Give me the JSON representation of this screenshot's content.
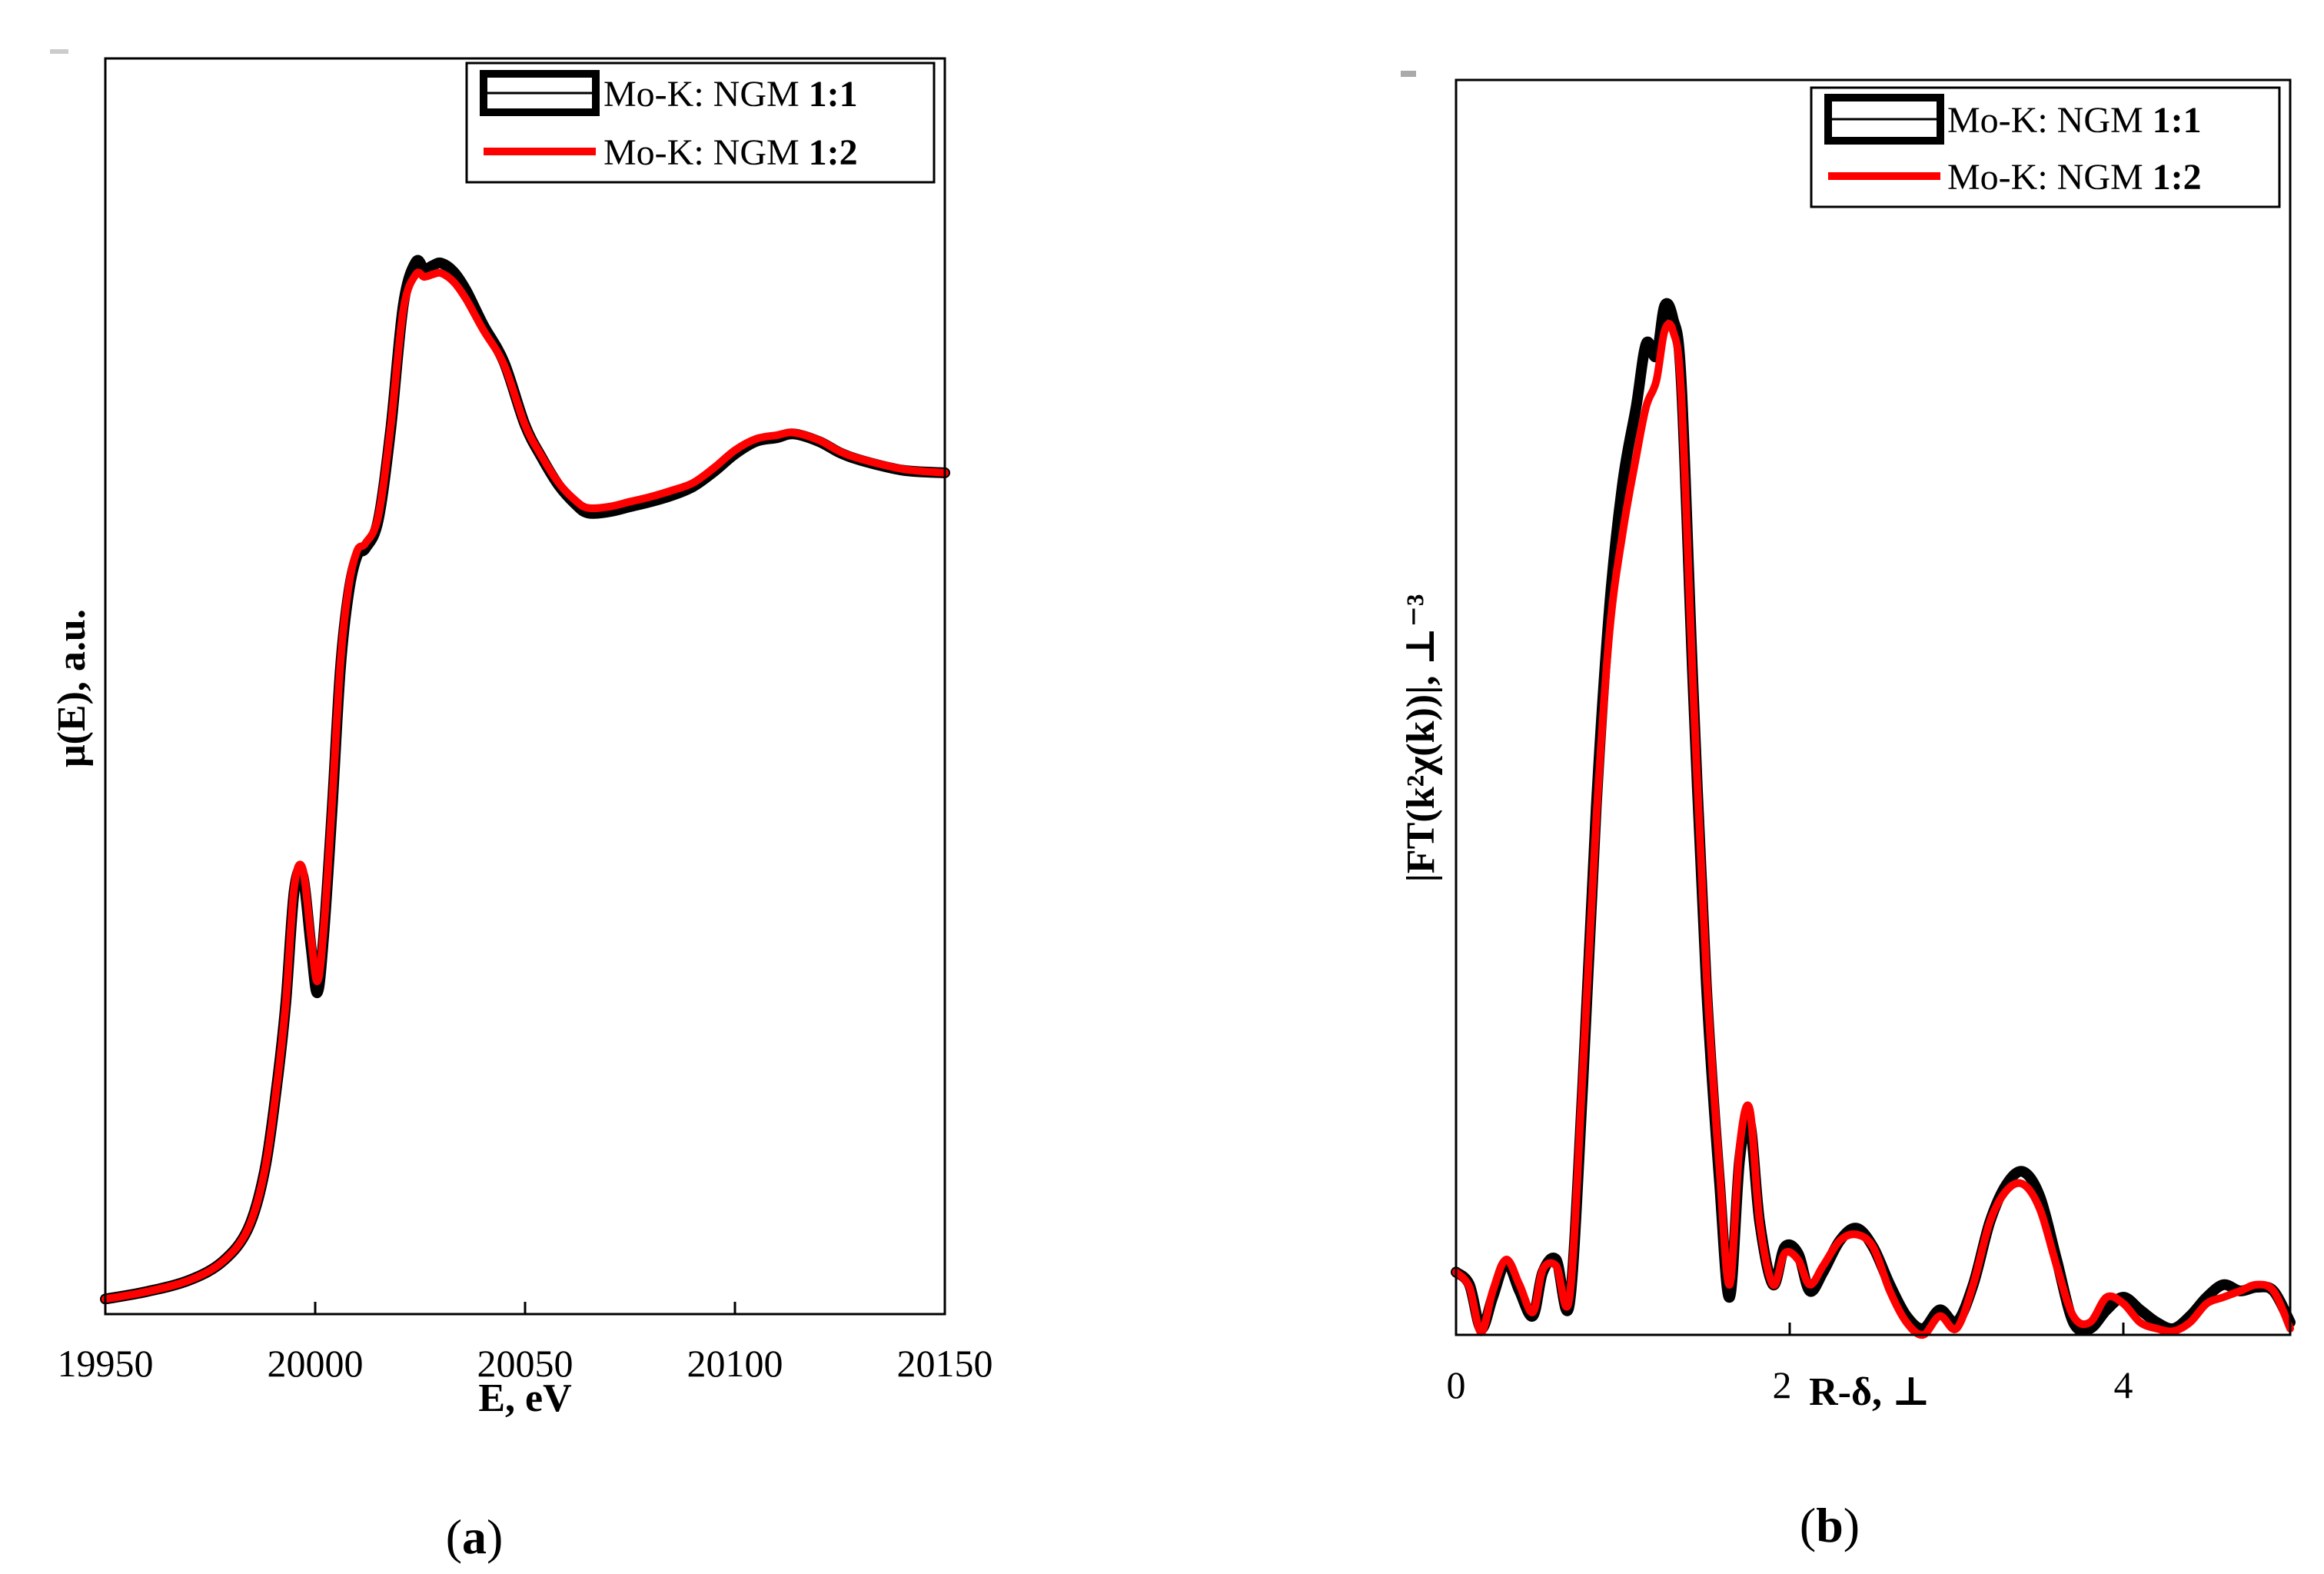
{
  "colors": {
    "sample_1_1": "#000000",
    "sample_1_2": "#ff0000"
  },
  "chart_data": [
    {
      "type": "line",
      "panel_label": {
        "open": "(",
        "letter": "a",
        "close": ")"
      },
      "xlabel": "E, eV",
      "ylabel": "μ(E), a.u.",
      "xlim": [
        19950,
        20150
      ],
      "ylim": [
        0,
        1.0
      ],
      "x_ticks": [
        19950,
        20000,
        20050,
        20100,
        20150
      ],
      "x_tick_labels": [
        "19950",
        "20000",
        "20050",
        "20100",
        "20150"
      ],
      "legend": [
        {
          "prefix": "Mo-K: NGM ",
          "ratio": "1:1"
        },
        {
          "prefix": "Mo-K: NGM ",
          "ratio": "1:2"
        }
      ],
      "series": [
        {
          "name": "Mo-K: NGM 1:1",
          "x": [
            19950,
            19960,
            19970,
            19978,
            19984,
            19988,
            19991,
            19993,
            19995,
            19997,
            19999,
            20000.5,
            20002,
            20004,
            20006,
            20008,
            20010,
            20012,
            20015,
            20018,
            20021,
            20024,
            20026,
            20028,
            20030,
            20033,
            20036,
            20040,
            20045,
            20050,
            20054,
            20058,
            20062,
            20065,
            20070,
            20075,
            20080,
            20085,
            20090,
            20095,
            20100,
            20105,
            20110,
            20114,
            20120,
            20125,
            20130,
            20140,
            20150
          ],
          "y": [
            0.012,
            0.018,
            0.027,
            0.042,
            0.068,
            0.115,
            0.186,
            0.248,
            0.337,
            0.35,
            0.293,
            0.256,
            0.3,
            0.4,
            0.514,
            0.575,
            0.604,
            0.61,
            0.632,
            0.705,
            0.804,
            0.838,
            0.832,
            0.835,
            0.837,
            0.83,
            0.815,
            0.788,
            0.758,
            0.708,
            0.682,
            0.66,
            0.645,
            0.638,
            0.639,
            0.643,
            0.647,
            0.652,
            0.659,
            0.671,
            0.685,
            0.695,
            0.698,
            0.701,
            0.695,
            0.686,
            0.68,
            0.672,
            0.67
          ]
        },
        {
          "name": "Mo-K: NGM 1:2",
          "x": [
            19950,
            19960,
            19970,
            19978,
            19984,
            19988,
            19991,
            19993,
            19995,
            19997,
            19999,
            20000.5,
            20002,
            20004,
            20006,
            20008,
            20010,
            20012,
            20015,
            20018,
            20021,
            20024,
            20026,
            20028,
            20030,
            20033,
            20036,
            20040,
            20045,
            20050,
            20054,
            20058,
            20062,
            20065,
            20070,
            20075,
            20080,
            20085,
            20090,
            20095,
            20100,
            20105,
            20110,
            20114,
            20120,
            20125,
            20130,
            20140,
            20150
          ],
          "y": [
            0.012,
            0.018,
            0.027,
            0.042,
            0.068,
            0.115,
            0.186,
            0.248,
            0.34,
            0.355,
            0.3,
            0.265,
            0.305,
            0.405,
            0.518,
            0.58,
            0.608,
            0.614,
            0.635,
            0.707,
            0.8,
            0.828,
            0.826,
            0.828,
            0.829,
            0.822,
            0.808,
            0.784,
            0.756,
            0.708,
            0.683,
            0.662,
            0.648,
            0.642,
            0.643,
            0.647,
            0.651,
            0.656,
            0.662,
            0.674,
            0.688,
            0.697,
            0.7,
            0.702,
            0.696,
            0.687,
            0.681,
            0.673,
            0.67
          ]
        }
      ]
    },
    {
      "type": "line",
      "panel_label": {
        "open": "(",
        "letter": "b",
        "close": ")"
      },
      "xlabel": "R-δ, ⊥",
      "ylabel": "|FT(k²χ(k))|, ⊥⁻³",
      "xlim": [
        0,
        5
      ],
      "ylim": [
        0,
        1.0
      ],
      "x_ticks": [
        0,
        2,
        4
      ],
      "x_tick_labels": [
        "0",
        "2",
        "4"
      ],
      "legend": [
        {
          "prefix": "Mo-K: NGM ",
          "ratio": "1:1"
        },
        {
          "prefix": "Mo-K: NGM ",
          "ratio": "1:2"
        }
      ],
      "series": [
        {
          "name": "Mo-K: NGM 1:1",
          "x": [
            0,
            0.08,
            0.15,
            0.22,
            0.3,
            0.38,
            0.46,
            0.52,
            0.6,
            0.68,
            0.76,
            0.84,
            0.92,
            1.0,
            1.08,
            1.14,
            1.2,
            1.25,
            1.3,
            1.35,
            1.42,
            1.5,
            1.58,
            1.64,
            1.7,
            1.76,
            1.82,
            1.9,
            1.97,
            2.05,
            2.12,
            2.2,
            2.3,
            2.4,
            2.5,
            2.6,
            2.7,
            2.8,
            2.9,
            3.0,
            3.1,
            3.2,
            3.3,
            3.4,
            3.5,
            3.6,
            3.7,
            3.8,
            3.9,
            4.0,
            4.1,
            4.2,
            4.3,
            4.4,
            4.5,
            4.6,
            4.7,
            4.8,
            4.9,
            5.0
          ],
          "y": [
            0.05,
            0.04,
            0.005,
            0.03,
            0.058,
            0.035,
            0.015,
            0.05,
            0.06,
            0.025,
            0.2,
            0.42,
            0.58,
            0.68,
            0.74,
            0.79,
            0.78,
            0.82,
            0.81,
            0.76,
            0.52,
            0.28,
            0.12,
            0.03,
            0.14,
            0.17,
            0.09,
            0.04,
            0.07,
            0.065,
            0.035,
            0.05,
            0.075,
            0.085,
            0.07,
            0.04,
            0.015,
            0.005,
            0.02,
            0.01,
            0.04,
            0.09,
            0.12,
            0.13,
            0.11,
            0.06,
            0.01,
            0.005,
            0.02,
            0.03,
            0.02,
            0.01,
            0.005,
            0.015,
            0.03,
            0.04,
            0.035,
            0.038,
            0.035,
            0.01
          ]
        },
        {
          "name": "Mo-K: NGM 1:2",
          "x": [
            0,
            0.08,
            0.15,
            0.22,
            0.3,
            0.38,
            0.46,
            0.52,
            0.6,
            0.68,
            0.76,
            0.84,
            0.92,
            1.0,
            1.08,
            1.14,
            1.2,
            1.25,
            1.3,
            1.35,
            1.42,
            1.5,
            1.58,
            1.64,
            1.7,
            1.76,
            1.82,
            1.9,
            1.97,
            2.05,
            2.12,
            2.2,
            2.3,
            2.4,
            2.5,
            2.6,
            2.7,
            2.8,
            2.9,
            3.0,
            3.1,
            3.2,
            3.3,
            3.4,
            3.5,
            3.6,
            3.7,
            3.8,
            3.9,
            4.0,
            4.1,
            4.2,
            4.3,
            4.4,
            4.5,
            4.6,
            4.7,
            4.8,
            4.9,
            5.0
          ],
          "y": [
            0.05,
            0.038,
            0.002,
            0.035,
            0.06,
            0.04,
            0.018,
            0.052,
            0.055,
            0.03,
            0.21,
            0.41,
            0.56,
            0.64,
            0.7,
            0.74,
            0.76,
            0.8,
            0.8,
            0.75,
            0.52,
            0.29,
            0.13,
            0.04,
            0.15,
            0.18,
            0.09,
            0.04,
            0.065,
            0.06,
            0.04,
            0.055,
            0.075,
            0.08,
            0.07,
            0.035,
            0.01,
            0.0,
            0.015,
            0.005,
            0.04,
            0.09,
            0.115,
            0.12,
            0.1,
            0.055,
            0.015,
            0.01,
            0.03,
            0.025,
            0.01,
            0.005,
            0.003,
            0.01,
            0.025,
            0.03,
            0.035,
            0.04,
            0.035,
            0.005
          ]
        }
      ]
    }
  ]
}
